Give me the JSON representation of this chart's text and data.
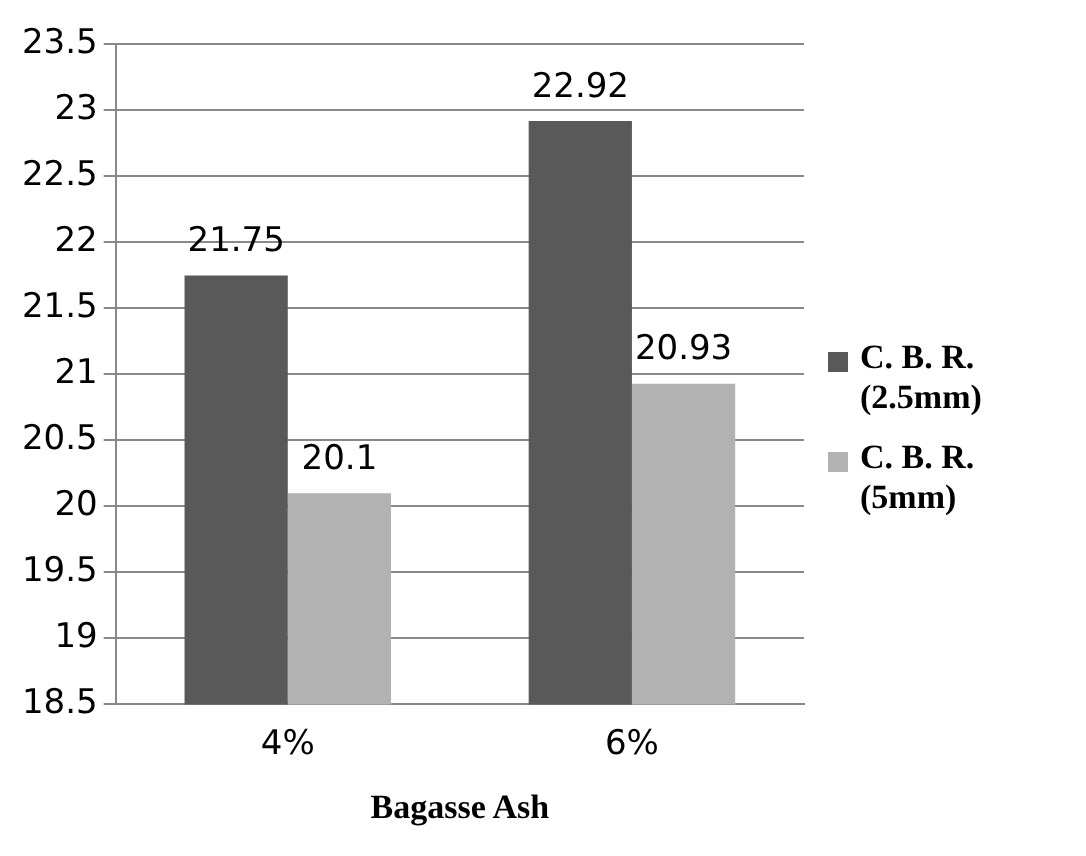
{
  "chart_data": {
    "type": "bar",
    "xlabel": "Bagasse Ash",
    "categories": [
      "4%",
      "6%"
    ],
    "series": [
      {
        "name": "C. B. R. (2.5mm)",
        "color": "#595959",
        "values": [
          21.75,
          22.92
        ]
      },
      {
        "name": "C. B. R. (5mm)",
        "color": "#b2b2b2",
        "values": [
          20.1,
          20.93
        ]
      }
    ],
    "ylim": [
      18.5,
      23.5
    ],
    "yticks": [
      18.5,
      19,
      19.5,
      20,
      20.5,
      21,
      21.5,
      22,
      22.5,
      23,
      23.5
    ],
    "grid": "y",
    "legend": "right",
    "data_labels": true
  }
}
